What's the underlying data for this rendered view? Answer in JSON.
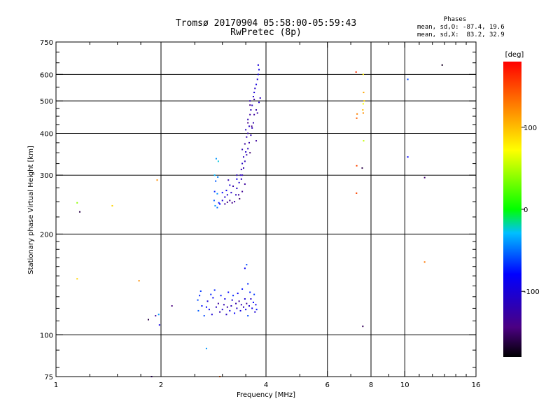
{
  "chart_data": {
    "type": "scatter",
    "title": "Tromsø 20170904 05:58:00-05:59:43",
    "subtitle": "RwPretec (8p)",
    "xlabel": "Frequency [MHz]",
    "ylabel": "Stationary phase Virtual Height [km]",
    "xscale": "log2",
    "yscale": "log",
    "xlim": [
      1,
      16
    ],
    "ylim": [
      75,
      750
    ],
    "x_ticks": [
      1,
      2,
      4,
      6,
      8,
      10,
      16
    ],
    "y_ticks": [
      75,
      100,
      200,
      300,
      400,
      500,
      600,
      750
    ],
    "x_gridlines": [
      2,
      4,
      6,
      8,
      10
    ],
    "y_gridlines": [
      100,
      200,
      300,
      400,
      500,
      600
    ],
    "stats": {
      "heading": "Phases",
      "line1": "mean, sd,O: -87.4, 19.6",
      "line2": "mean, sd,X:  83.2, 32.9"
    },
    "colorbar": {
      "label": "[deg]",
      "range": [
        -180,
        180
      ],
      "ticks": [
        100,
        0,
        -100
      ]
    },
    "points_columns": [
      "frequency_MHz",
      "height_km",
      "phase_deg"
    ],
    "points": [
      [
        1.15,
        248,
        40
      ],
      [
        1.17,
        233,
        -160
      ],
      [
        1.45,
        243,
        90
      ],
      [
        1.95,
        290,
        120
      ],
      [
        1.15,
        147,
        90
      ],
      [
        1.73,
        145,
        120
      ],
      [
        1.84,
        111,
        -160
      ],
      [
        1.93,
        114,
        -130
      ],
      [
        1.97,
        115,
        -40
      ],
      [
        1.98,
        107,
        -95
      ],
      [
        2.15,
        122,
        -145
      ],
      [
        1.88,
        75,
        -140
      ],
      [
        2.7,
        91,
        -40
      ],
      [
        2.95,
        75,
        140
      ],
      [
        2.88,
        336,
        -40
      ],
      [
        2.92,
        330,
        -25
      ],
      [
        2.85,
        300,
        -30
      ],
      [
        2.91,
        296,
        -45
      ],
      [
        2.87,
        288,
        -55
      ],
      [
        2.85,
        268,
        -70
      ],
      [
        2.9,
        264,
        -40
      ],
      [
        2.84,
        252,
        -55
      ],
      [
        2.93,
        248,
        -75
      ],
      [
        2.86,
        243,
        -40
      ],
      [
        2.9,
        240,
        -50
      ],
      [
        2.95,
        246,
        -80
      ],
      [
        3.0,
        252,
        -100
      ],
      [
        3.05,
        258,
        -105
      ],
      [
        3.0,
        266,
        -80
      ],
      [
        3.08,
        270,
        -90
      ],
      [
        3.05,
        246,
        -130
      ],
      [
        3.1,
        249,
        -140
      ],
      [
        3.15,
        252,
        -135
      ],
      [
        3.2,
        248,
        -140
      ],
      [
        3.25,
        250,
        -130
      ],
      [
        3.1,
        262,
        -105
      ],
      [
        3.18,
        266,
        -110
      ],
      [
        3.15,
        280,
        -100
      ],
      [
        3.28,
        262,
        -115
      ],
      [
        3.3,
        274,
        -110
      ],
      [
        3.35,
        285,
        -105
      ],
      [
        3.3,
        292,
        -95
      ],
      [
        3.38,
        300,
        -110
      ],
      [
        3.4,
        312,
        -120
      ],
      [
        3.42,
        325,
        -110
      ],
      [
        3.45,
        340,
        -115
      ],
      [
        3.42,
        358,
        -120
      ],
      [
        3.5,
        352,
        -110
      ],
      [
        3.48,
        372,
        -130
      ],
      [
        3.52,
        390,
        -120
      ],
      [
        3.5,
        410,
        -115
      ],
      [
        3.55,
        400,
        -125
      ],
      [
        3.58,
        420,
        -110
      ],
      [
        3.55,
        440,
        -120
      ],
      [
        3.6,
        455,
        -130
      ],
      [
        3.62,
        470,
        -115
      ],
      [
        3.65,
        485,
        -110
      ],
      [
        3.6,
        500,
        -120
      ],
      [
        3.68,
        515,
        -105
      ],
      [
        3.7,
        530,
        -100
      ],
      [
        3.72,
        545,
        -110
      ],
      [
        3.75,
        560,
        -95
      ],
      [
        3.78,
        580,
        -100
      ],
      [
        3.8,
        600,
        -95
      ],
      [
        3.82,
        620,
        -90
      ],
      [
        3.8,
        640,
        -100
      ],
      [
        3.85,
        510,
        -115
      ],
      [
        3.82,
        495,
        -105
      ],
      [
        3.75,
        470,
        -125
      ],
      [
        3.7,
        455,
        -130
      ],
      [
        3.68,
        430,
        -120
      ],
      [
        3.65,
        415,
        -115
      ],
      [
        3.62,
        395,
        -120
      ],
      [
        3.58,
        375,
        -125
      ],
      [
        3.55,
        360,
        -115
      ],
      [
        3.52,
        345,
        -120
      ],
      [
        3.48,
        330,
        -115
      ],
      [
        3.45,
        315,
        -120
      ],
      [
        3.42,
        300,
        -120
      ],
      [
        3.4,
        292,
        -115
      ],
      [
        3.6,
        486,
        -140
      ],
      [
        3.7,
        505,
        -135
      ],
      [
        3.55,
        430,
        -140
      ],
      [
        3.64,
        420,
        -145
      ],
      [
        3.75,
        380,
        -130
      ],
      [
        3.78,
        460,
        -125
      ],
      [
        3.6,
        350,
        -150
      ],
      [
        3.48,
        282,
        -130
      ],
      [
        3.22,
        278,
        -125
      ],
      [
        3.34,
        262,
        -130
      ],
      [
        3.36,
        255,
        -150
      ],
      [
        3.42,
        268,
        -135
      ],
      [
        3.12,
        290,
        -120
      ],
      [
        3.3,
        300,
        -115
      ],
      [
        2.55,
        127,
        -60
      ],
      [
        2.58,
        131,
        -70
      ],
      [
        2.56,
        118,
        -55
      ],
      [
        2.6,
        135,
        -65
      ],
      [
        2.62,
        122,
        -75
      ],
      [
        2.66,
        114,
        -60
      ],
      [
        2.7,
        121,
        -80
      ],
      [
        2.72,
        126,
        -100
      ],
      [
        2.75,
        119,
        -90
      ],
      [
        2.78,
        132,
        -70
      ],
      [
        2.8,
        115,
        -100
      ],
      [
        2.82,
        129,
        -85
      ],
      [
        2.85,
        136,
        -70
      ],
      [
        2.88,
        121,
        -110
      ],
      [
        2.92,
        124,
        -130
      ],
      [
        2.95,
        117,
        -120
      ],
      [
        2.97,
        131,
        -75
      ],
      [
        3.0,
        119,
        -105
      ],
      [
        3.03,
        123,
        -120
      ],
      [
        3.05,
        128,
        -90
      ],
      [
        3.08,
        115,
        -110
      ],
      [
        3.1,
        121,
        -125
      ],
      [
        3.12,
        134,
        -80
      ],
      [
        3.15,
        118,
        -95
      ],
      [
        3.18,
        122,
        -115
      ],
      [
        3.2,
        127,
        -105
      ],
      [
        3.22,
        131,
        -70
      ],
      [
        3.25,
        116,
        -80
      ],
      [
        3.28,
        124,
        -125
      ],
      [
        3.3,
        120,
        -110
      ],
      [
        3.32,
        133,
        -85
      ],
      [
        3.35,
        126,
        -130
      ],
      [
        3.38,
        118,
        -95
      ],
      [
        3.4,
        123,
        -120
      ],
      [
        3.42,
        137,
        -75
      ],
      [
        3.45,
        121,
        -115
      ],
      [
        3.48,
        128,
        -100
      ],
      [
        3.5,
        119,
        -90
      ],
      [
        3.52,
        124,
        -130
      ],
      [
        3.55,
        114,
        -60
      ],
      [
        3.58,
        122,
        -105
      ],
      [
        3.6,
        134,
        -70
      ],
      [
        3.62,
        128,
        -110
      ],
      [
        3.65,
        120,
        -95
      ],
      [
        3.68,
        125,
        -80
      ],
      [
        3.7,
        132,
        -65
      ],
      [
        3.72,
        117,
        -100
      ],
      [
        3.74,
        123,
        -90
      ],
      [
        3.76,
        119,
        -75
      ],
      [
        3.48,
        158,
        -85
      ],
      [
        3.52,
        162,
        -60
      ],
      [
        3.55,
        142,
        -70
      ],
      [
        7.25,
        610,
        160
      ],
      [
        7.28,
        444,
        140
      ],
      [
        7.3,
        457,
        125
      ],
      [
        7.28,
        320,
        150
      ],
      [
        7.27,
        265,
        150
      ],
      [
        7.6,
        600,
        80
      ],
      [
        7.62,
        530,
        110
      ],
      [
        7.65,
        500,
        90
      ],
      [
        7.6,
        490,
        70
      ],
      [
        7.58,
        470,
        100
      ],
      [
        7.6,
        460,
        120
      ],
      [
        7.62,
        380,
        55
      ],
      [
        7.55,
        315,
        -160
      ],
      [
        7.58,
        106,
        -155
      ],
      [
        10.2,
        580,
        -60
      ],
      [
        10.2,
        340,
        -80
      ],
      [
        11.4,
        295,
        -150
      ],
      [
        11.4,
        165,
        130
      ],
      [
        12.8,
        640,
        -170
      ]
    ]
  }
}
